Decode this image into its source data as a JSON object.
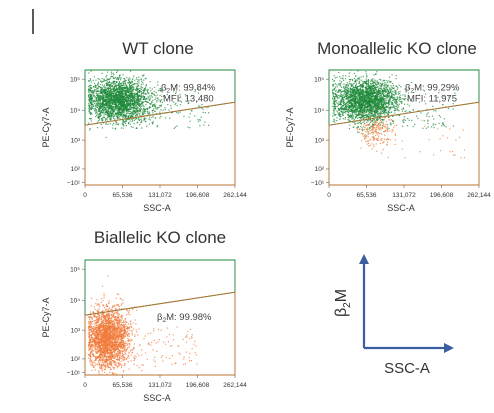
{
  "chart_data": [
    {
      "type": "scatter",
      "title": "WT clone",
      "xlabel": "SSC-A",
      "ylabel": "PE-Cy7-A",
      "xlim": [
        0,
        262144
      ],
      "x_ticks": [
        "0",
        "65,536",
        "131,072",
        "196,608",
        "262,144"
      ],
      "y_ticks": [
        "10⁵",
        "10⁴",
        "10³",
        "10²",
        "−10¹"
      ],
      "gate": {
        "label_symbol": "β",
        "label_sub": "2",
        "label_rest": "M: 99.84%",
        "mfi": "MFI: 13,480",
        "percent": 99.84,
        "mfi_value": 13480
      },
      "populations": [
        {
          "color": "#1e8a3a",
          "center": {
            "x": 55000,
            "y": "~10⁴"
          },
          "gated_percent": 99.84
        }
      ]
    },
    {
      "type": "scatter",
      "title": "Monoallelic KO clone",
      "xlabel": "SSC-A",
      "ylabel": "PE-Cy7-A",
      "xlim": [
        0,
        262144
      ],
      "x_ticks": [
        "0",
        "65,536",
        "131,072",
        "196,608",
        "262,144"
      ],
      "y_ticks": [
        "10⁵",
        "10⁴",
        "10³",
        "10²",
        "−10¹"
      ],
      "gate": {
        "label_symbol": "β",
        "label_sub": "2",
        "label_rest": "M: 99.29%",
        "mfi": "MFI: 11,975",
        "percent": 99.29,
        "mfi_value": 11975
      },
      "populations": [
        {
          "color": "#1e8a3a",
          "center": {
            "x": 55000,
            "y": "~10⁴"
          },
          "gated_percent": 99.29
        },
        {
          "color": "#f07a3a",
          "center": {
            "x": 60000,
            "y": "~10³"
          },
          "gated_percent": 0.71
        }
      ]
    },
    {
      "type": "scatter",
      "title": "Biallelic KO clone",
      "xlabel": "SSC-A",
      "ylabel": "PE-Cy7-A",
      "xlim": [
        0,
        262144
      ],
      "x_ticks": [
        "0",
        "65,536",
        "131,072",
        "196,608",
        "262,144"
      ],
      "y_ticks": [
        "10⁵",
        "10⁴",
        "10³",
        "10²",
        "−10¹"
      ],
      "gate": {
        "label_symbol": "β",
        "label_sub": "2",
        "label_rest": "M: 99.98%",
        "percent": 99.98
      },
      "populations": [
        {
          "color": "#f07a3a",
          "center": {
            "x": 40000,
            "y": "~10²"
          },
          "gated_percent": 99.98
        }
      ]
    }
  ],
  "legend_axes": {
    "y_symbol": "β",
    "y_sub": "2",
    "y_rest": "M",
    "x_label": "SSC-A",
    "color": "#3a5fa0"
  },
  "colors": {
    "gate_upper": "#1e8a3a",
    "gate_lower": "#b87333",
    "high": "#1e8a3a",
    "low": "#f07a3a"
  }
}
